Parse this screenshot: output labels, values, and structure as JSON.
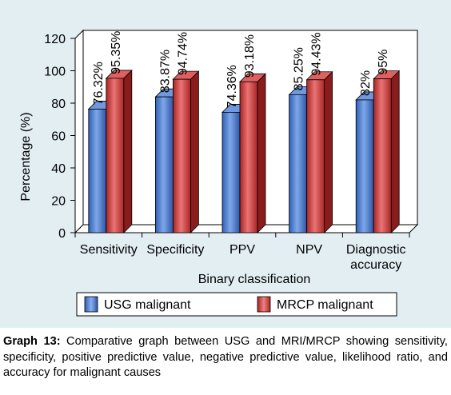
{
  "chart_data": {
    "type": "bar",
    "style": "3d-clustered",
    "categories": [
      "Sensitivity",
      "Specificity",
      "PPV",
      "NPV",
      "Diagnostic\naccuracy"
    ],
    "series": [
      {
        "name": "USG malignant",
        "values": [
          76.32,
          83.87,
          74.36,
          85.25,
          82
        ],
        "labels": [
          "76.32%",
          "83.87%",
          "74.36%",
          "85.25%",
          "82%"
        ],
        "color": "#4f7fcf"
      },
      {
        "name": "MRCP malignant",
        "values": [
          95.35,
          94.74,
          93.18,
          94.43,
          95
        ],
        "labels": [
          "95.35%",
          "94.74%",
          "93.18%",
          "94.43%",
          "95%"
        ],
        "color": "#cc3f3f"
      }
    ],
    "ylabel": "Percentage (%)",
    "xlabel": "Binary classification",
    "ylim": [
      0,
      120
    ],
    "yticks": [
      0,
      20,
      40,
      60,
      80,
      100,
      120
    ],
    "grid": false,
    "legend_position": "bottom"
  },
  "caption": {
    "label": "Graph 13:",
    "text": " Comparative graph between USG and MRI/MRCP showing sensitivity, specificity, positive predictive value, negative predictive value, likelihood ratio, and accuracy for malignant causes"
  }
}
